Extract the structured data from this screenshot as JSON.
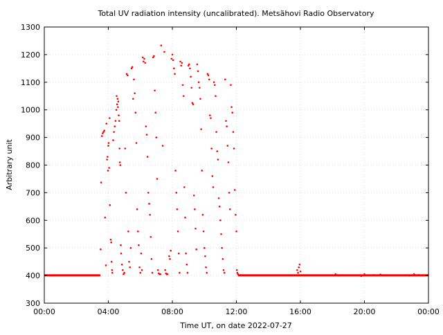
{
  "chart_data": {
    "type": "scatter",
    "title": "Total UV radiation intensity (uncalibrated). Metsähovi Radio Observatory",
    "xlabel": "Time UT, on date 2022-07-27",
    "ylabel": "Arbitrary unit",
    "xlim": [
      0,
      24
    ],
    "ylim": [
      300,
      1300
    ],
    "x_ticks": [
      0,
      4,
      8,
      12,
      16,
      20,
      24
    ],
    "x_tick_labels": [
      "00:00",
      "04:00",
      "08:00",
      "12:00",
      "16:00",
      "20:00",
      "00:00"
    ],
    "y_ticks": [
      300,
      400,
      500,
      600,
      700,
      800,
      900,
      1000,
      1100,
      1200,
      1300
    ],
    "y_tick_labels": [
      "300",
      "400",
      "500",
      "600",
      "700",
      "800",
      "900",
      "1000",
      "1100",
      "1200",
      "1300"
    ],
    "grid": true,
    "marker_color": "#ff0000",
    "baseline": {
      "y": 401,
      "x_ranges": [
        [
          0,
          3.5
        ],
        [
          12.1,
          24
        ]
      ]
    },
    "series": [
      {
        "points": [
          [
            3.52,
            495
          ],
          [
            3.55,
            737
          ],
          [
            3.6,
            905
          ],
          [
            3.65,
            915
          ],
          [
            3.7,
            920
          ],
          [
            3.75,
            925
          ],
          [
            3.8,
            610
          ],
          [
            3.85,
            437
          ],
          [
            3.88,
            950
          ],
          [
            3.92,
            820
          ],
          [
            3.95,
            830
          ],
          [
            3.98,
            780
          ],
          [
            4.0,
            870
          ],
          [
            4.02,
            880
          ],
          [
            4.05,
            790
          ],
          [
            4.08,
            970
          ],
          [
            4.1,
            655
          ],
          [
            4.15,
            530
          ],
          [
            4.18,
            520
          ],
          [
            4.2,
            450
          ],
          [
            4.23,
            420
          ],
          [
            4.25,
            410
          ],
          [
            4.3,
            890
          ],
          [
            4.35,
            920
          ],
          [
            4.4,
            940
          ],
          [
            4.45,
            960
          ],
          [
            4.5,
            1000
          ],
          [
            4.52,
            1050
          ],
          [
            4.55,
            1020
          ],
          [
            4.58,
            1040
          ],
          [
            4.6,
            1010
          ],
          [
            4.62,
            1030
          ],
          [
            4.65,
            980
          ],
          [
            4.68,
            960
          ],
          [
            4.7,
            860
          ],
          [
            4.72,
            810
          ],
          [
            4.75,
            800
          ],
          [
            4.78,
            510
          ],
          [
            4.8,
            480
          ],
          [
            4.85,
            440
          ],
          [
            4.9,
            420
          ],
          [
            4.95,
            405
          ],
          [
            5.0,
            410
          ],
          [
            5.05,
            860
          ],
          [
            5.1,
            700
          ],
          [
            5.15,
            1130
          ],
          [
            5.2,
            1125
          ],
          [
            5.25,
            560
          ],
          [
            5.3,
            450
          ],
          [
            5.35,
            430
          ],
          [
            5.4,
            500
          ],
          [
            5.45,
            1150
          ],
          [
            5.5,
            1155
          ],
          [
            5.55,
            1040
          ],
          [
            5.6,
            1110
          ],
          [
            5.65,
            1060
          ],
          [
            5.7,
            990
          ],
          [
            5.75,
            880
          ],
          [
            5.8,
            640
          ],
          [
            5.85,
            560
          ],
          [
            5.9,
            510
          ],
          [
            5.95,
            430
          ],
          [
            6.0,
            410
          ],
          [
            6.05,
            480
          ],
          [
            6.1,
            420
          ],
          [
            6.15,
            1190
          ],
          [
            6.2,
            1175
          ],
          [
            6.25,
            1185
          ],
          [
            6.3,
            1170
          ],
          [
            6.35,
            940
          ],
          [
            6.4,
            910
          ],
          [
            6.45,
            830
          ],
          [
            6.5,
            700
          ],
          [
            6.55,
            660
          ],
          [
            6.6,
            620
          ],
          [
            6.65,
            540
          ],
          [
            6.7,
            460
          ],
          [
            6.75,
            410
          ],
          [
            6.8,
            1190
          ],
          [
            6.85,
            1195
          ],
          [
            6.9,
            1070
          ],
          [
            6.95,
            990
          ],
          [
            7.0,
            900
          ],
          [
            7.05,
            750
          ],
          [
            7.1,
            420
          ],
          [
            7.15,
            408
          ],
          [
            7.2,
            405
          ],
          [
            7.25,
            405
          ],
          [
            7.3,
            1233
          ],
          [
            7.4,
            870
          ],
          [
            7.5,
            1210
          ],
          [
            7.55,
            420
          ],
          [
            7.6,
            408
          ],
          [
            7.65,
            405
          ],
          [
            7.7,
            405
          ],
          [
            7.8,
            470
          ],
          [
            7.85,
            460
          ],
          [
            7.9,
            490
          ],
          [
            7.95,
            1185
          ],
          [
            8.0,
            1200
          ],
          [
            8.05,
            1180
          ],
          [
            8.1,
            1150
          ],
          [
            8.15,
            1130
          ],
          [
            8.2,
            780
          ],
          [
            8.25,
            700
          ],
          [
            8.3,
            640
          ],
          [
            8.35,
            560
          ],
          [
            8.4,
            480
          ],
          [
            8.45,
            410
          ],
          [
            8.5,
            1175
          ],
          [
            8.55,
            1160
          ],
          [
            8.6,
            1170
          ],
          [
            8.65,
            1090
          ],
          [
            8.7,
            1050
          ],
          [
            8.75,
            720
          ],
          [
            8.8,
            610
          ],
          [
            8.85,
            480
          ],
          [
            8.9,
            440
          ],
          [
            8.95,
            410
          ],
          [
            9.0,
            1160
          ],
          [
            9.05,
            1165
          ],
          [
            9.1,
            1150
          ],
          [
            9.15,
            1120
          ],
          [
            9.2,
            1080
          ],
          [
            9.25,
            1025
          ],
          [
            9.3,
            1020
          ],
          [
            9.35,
            690
          ],
          [
            9.4,
            640
          ],
          [
            9.45,
            570
          ],
          [
            9.5,
            495
          ],
          [
            9.55,
            1165
          ],
          [
            9.6,
            1140
          ],
          [
            9.65,
            1100
          ],
          [
            9.7,
            1080
          ],
          [
            9.75,
            1040
          ],
          [
            9.8,
            930
          ],
          [
            9.85,
            780
          ],
          [
            9.9,
            620
          ],
          [
            9.95,
            560
          ],
          [
            10.0,
            500
          ],
          [
            10.05,
            470
          ],
          [
            10.1,
            430
          ],
          [
            10.15,
            410
          ],
          [
            10.2,
            1130
          ],
          [
            10.25,
            1125
          ],
          [
            10.3,
            1110
          ],
          [
            10.35,
            980
          ],
          [
            10.4,
            970
          ],
          [
            10.45,
            860
          ],
          [
            10.5,
            760
          ],
          [
            10.55,
            720
          ],
          [
            10.6,
            1100
          ],
          [
            10.65,
            1090
          ],
          [
            10.7,
            1050
          ],
          [
            10.75,
            920
          ],
          [
            10.8,
            850
          ],
          [
            10.85,
            820
          ],
          [
            10.9,
            680
          ],
          [
            10.95,
            650
          ],
          [
            11.0,
            600
          ],
          [
            11.05,
            550
          ],
          [
            11.1,
            500
          ],
          [
            11.15,
            460
          ],
          [
            11.2,
            420
          ],
          [
            11.25,
            410
          ],
          [
            11.3,
            1110
          ],
          [
            11.35,
            960
          ],
          [
            11.4,
            940
          ],
          [
            11.45,
            870
          ],
          [
            11.5,
            810
          ],
          [
            11.55,
            700
          ],
          [
            11.6,
            640
          ],
          [
            11.65,
            1090
          ],
          [
            11.7,
            1010
          ],
          [
            11.75,
            990
          ],
          [
            11.8,
            920
          ],
          [
            11.85,
            860
          ],
          [
            11.9,
            710
          ],
          [
            11.95,
            620
          ],
          [
            12.0,
            560
          ],
          [
            12.03,
            420
          ],
          [
            12.06,
            410
          ],
          [
            12.1,
            405
          ],
          [
            15.8,
            420
          ],
          [
            15.85,
            410
          ],
          [
            15.9,
            430
          ],
          [
            15.95,
            440
          ],
          [
            16.0,
            415
          ],
          [
            18.2,
            405
          ],
          [
            18.4,
            400
          ],
          [
            19.8,
            398
          ],
          [
            20.0,
            405
          ],
          [
            20.6,
            402
          ],
          [
            21.0,
            404
          ],
          [
            22.8,
            400
          ],
          [
            23.1,
            405
          ],
          [
            23.4,
            402
          ]
        ]
      }
    ]
  }
}
